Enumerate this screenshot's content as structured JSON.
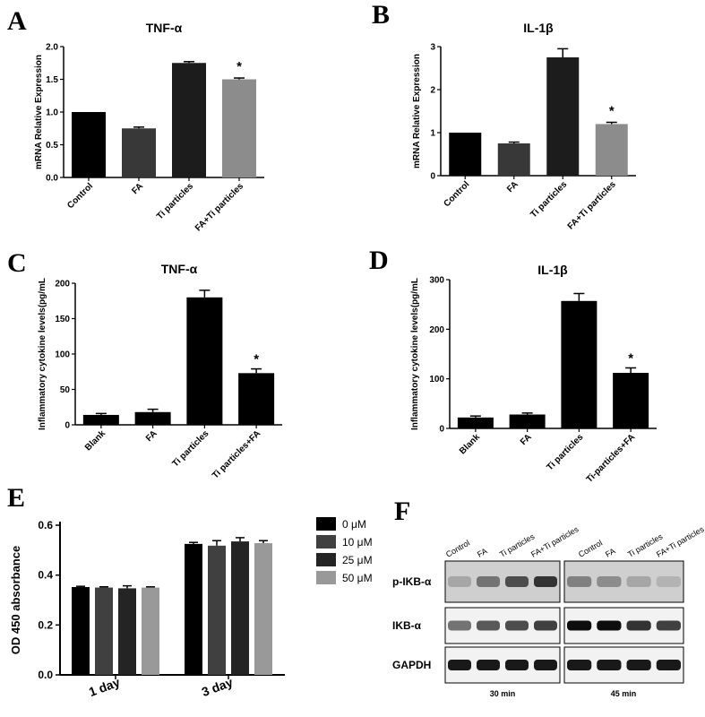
{
  "chart_data": [
    {
      "panel": "A",
      "type": "bar",
      "title": "TNF-α",
      "ylabel": "mRNA Relative Expression",
      "categories": [
        "Control",
        "FA",
        "Ti particles",
        "FA+Ti particles"
      ],
      "values": [
        1.0,
        0.75,
        1.75,
        1.5
      ],
      "errors": [
        0.0,
        0.02,
        0.02,
        0.02
      ],
      "colors": [
        "#000000",
        "#383838",
        "#1c1c1c",
        "#8c8c8c"
      ],
      "significance": [
        "",
        "",
        "",
        "*"
      ],
      "ylim": [
        0,
        2.0
      ],
      "yticks": [
        "0.0",
        "0.5",
        "1.0",
        "1.5",
        "2.0"
      ],
      "ytick_values": [
        0,
        0.5,
        1.0,
        1.5,
        2.0
      ]
    },
    {
      "panel": "B",
      "type": "bar",
      "title": "IL-1β",
      "ylabel": "mRNA Relative Expression",
      "categories": [
        "Control",
        "FA",
        "Ti particles",
        "FA+Ti particles"
      ],
      "values": [
        1.0,
        0.75,
        2.75,
        1.2
      ],
      "errors": [
        0.0,
        0.03,
        0.2,
        0.04
      ],
      "colors": [
        "#000000",
        "#383838",
        "#1c1c1c",
        "#8c8c8c"
      ],
      "significance": [
        "",
        "",
        "",
        "*"
      ],
      "ylim": [
        0,
        3
      ],
      "yticks": [
        "0",
        "1",
        "2",
        "3"
      ],
      "ytick_values": [
        0,
        1,
        2,
        3
      ]
    },
    {
      "panel": "C",
      "type": "bar",
      "title": "TNF-α",
      "ylabel": "Inflammatory cytokine levels(pg/mL",
      "categories": [
        "Blank",
        "FA",
        "Ti particles",
        "Ti particles+FA"
      ],
      "values": [
        14,
        18,
        180,
        73
      ],
      "errors": [
        2,
        4,
        10,
        6
      ],
      "colors": [
        "#000000",
        "#000000",
        "#000000",
        "#000000"
      ],
      "significance": [
        "",
        "",
        "",
        "*"
      ],
      "ylim": [
        0,
        200
      ],
      "yticks": [
        "0",
        "50",
        "100",
        "150",
        "200"
      ],
      "ytick_values": [
        0,
        50,
        100,
        150,
        200
      ]
    },
    {
      "panel": "D",
      "type": "bar",
      "title": "IL-1β",
      "ylabel": "Inflammatory cytokine levels(pg/mL",
      "categories": [
        "Blank",
        "FA",
        "Ti particles",
        "Ti-particles+FA"
      ],
      "values": [
        22,
        28,
        257,
        112
      ],
      "errors": [
        3,
        3,
        15,
        10
      ],
      "colors": [
        "#000000",
        "#000000",
        "#000000",
        "#000000"
      ],
      "significance": [
        "",
        "",
        "",
        "*"
      ],
      "ylim": [
        0,
        300
      ],
      "yticks": [
        "0",
        "100",
        "200",
        "300"
      ],
      "ytick_values": [
        0,
        100,
        200,
        300
      ]
    },
    {
      "panel": "E",
      "type": "bar",
      "ylabel": "OD 450  absorbance",
      "categories": [
        "1 day",
        "3 day"
      ],
      "series": [
        {
          "name": "0 μM",
          "color": "#000000",
          "values": [
            0.352,
            0.525
          ],
          "errors": [
            0.003,
            0.006
          ]
        },
        {
          "name": "10 μM",
          "color": "#404040",
          "values": [
            0.35,
            0.518
          ],
          "errors": [
            0.003,
            0.02
          ]
        },
        {
          "name": "25 μM",
          "color": "#242424",
          "values": [
            0.347,
            0.535
          ],
          "errors": [
            0.01,
            0.015
          ]
        },
        {
          "name": "50 μM",
          "color": "#999999",
          "values": [
            0.35,
            0.528
          ],
          "errors": [
            0.003,
            0.01
          ]
        }
      ],
      "ylim": [
        0,
        0.6
      ],
      "yticks": [
        "0.0",
        "0.2",
        "0.4",
        "0.6"
      ],
      "ytick_values": [
        0,
        0.2,
        0.4,
        0.6
      ],
      "legend": "right"
    }
  ],
  "panel_labels": [
    "A",
    "B",
    "C",
    "D",
    "E",
    "F"
  ],
  "western_blot": {
    "panel": "F",
    "lanes": [
      "Control",
      "FA",
      "Ti particles",
      "FA+Ti particles",
      "Control",
      "FA",
      "Ti particles",
      "FA+Ti particles"
    ],
    "rows": [
      "p-IKB-α",
      "IKB-α",
      "GAPDH"
    ],
    "times": [
      "30 min",
      "45 min"
    ]
  }
}
